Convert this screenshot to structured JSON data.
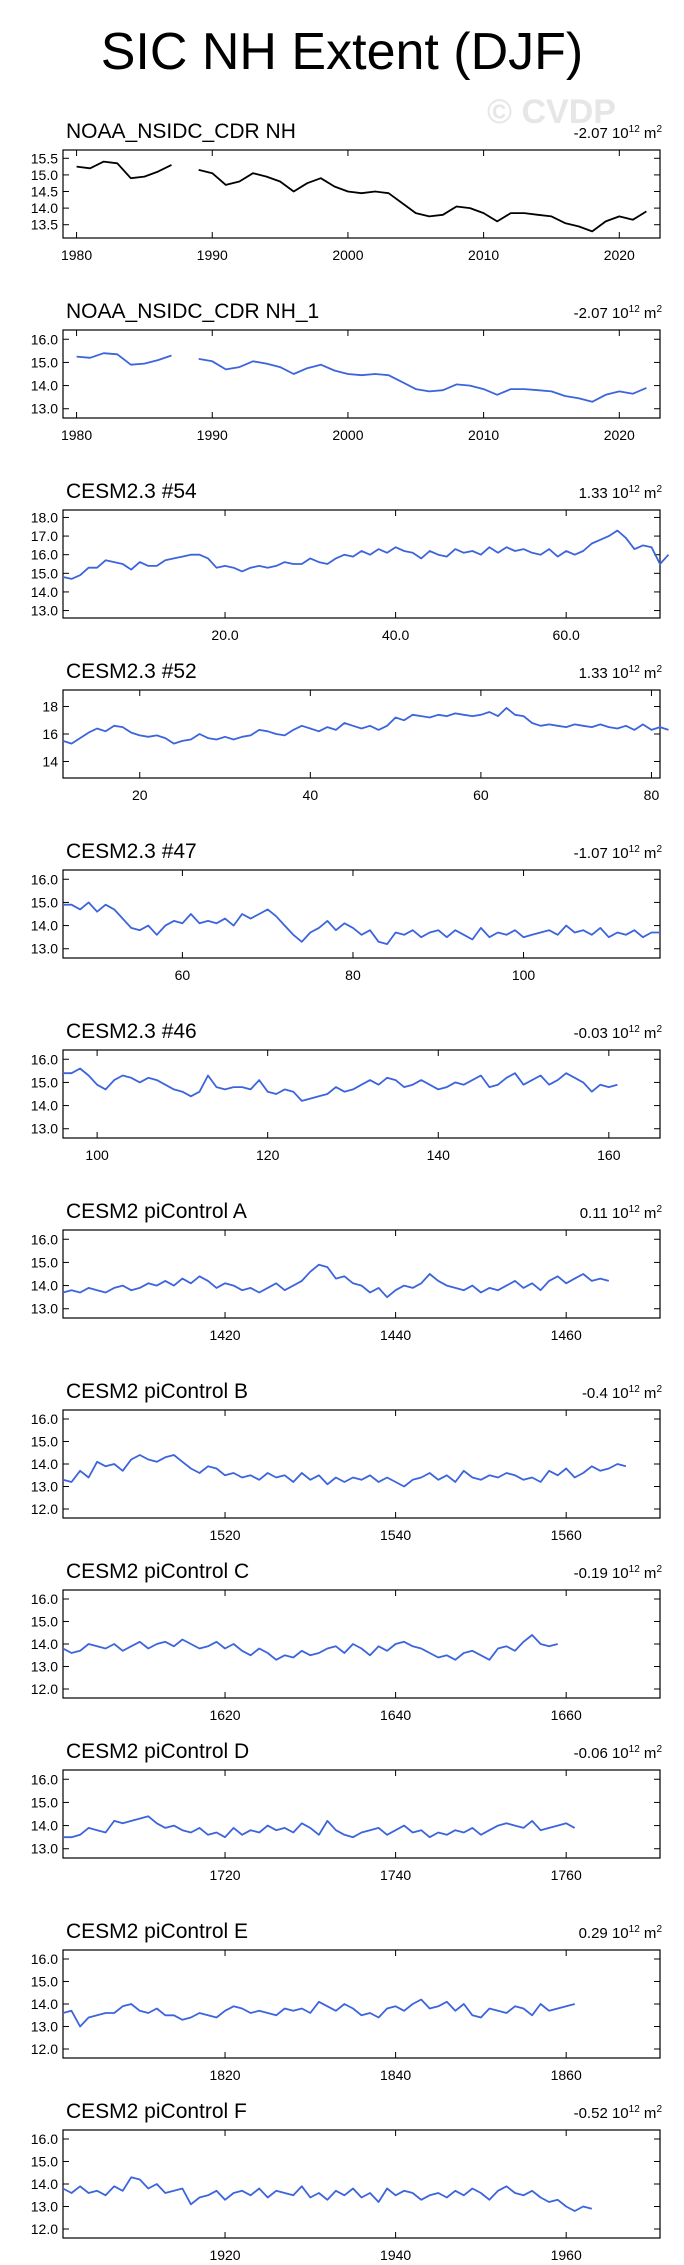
{
  "title": "SIC NH Extent (DJF)",
  "watermark": "© CVDP",
  "units": "10",
  "unit_exp": "12",
  "unit_tail": "m",
  "unit_tail_exp": "2",
  "colors": {
    "obs": "#000000",
    "model": "#3c64dc",
    "frame": "#000000"
  },
  "chart_data": [
    {
      "type": "line",
      "name": "NOAA_NSIDC_CDR NH",
      "trend": "-2.07",
      "color": "#000000",
      "ylim": [
        13.1,
        15.75
      ],
      "yticks": [
        "13.5",
        "14.0",
        "14.5",
        "15.0",
        "15.5"
      ],
      "xlim": [
        1979,
        2023
      ],
      "xticks": [
        "1980",
        "1990",
        "2000",
        "2010",
        "2020"
      ],
      "x": [
        1980,
        1981,
        1982,
        1983,
        1984,
        1985,
        1986,
        1987,
        1988,
        1989,
        1990,
        1991,
        1992,
        1993,
        1994,
        1995,
        1996,
        1997,
        1998,
        1999,
        2000,
        2001,
        2002,
        2003,
        2004,
        2005,
        2006,
        2007,
        2008,
        2009,
        2010,
        2011,
        2012,
        2013,
        2014,
        2015,
        2016,
        2017,
        2018,
        2019,
        2020,
        2021,
        2022,
        2023
      ],
      "y": [
        15.25,
        15.2,
        15.4,
        15.35,
        14.9,
        14.95,
        15.1,
        15.3,
        null,
        15.15,
        15.05,
        14.7,
        14.8,
        15.05,
        14.95,
        14.8,
        14.5,
        14.75,
        14.9,
        14.65,
        14.5,
        14.45,
        14.5,
        14.45,
        14.15,
        13.85,
        13.75,
        13.8,
        14.05,
        14.0,
        13.85,
        13.6,
        13.85,
        13.85,
        13.8,
        13.75,
        13.55,
        13.45,
        13.3,
        13.6,
        13.75,
        13.65,
        13.9,
        null
      ]
    },
    {
      "type": "line",
      "name": "NOAA_NSIDC_CDR NH_1",
      "trend": "-2.07",
      "color": "#3c64dc",
      "ylim": [
        12.6,
        16.4
      ],
      "yticks": [
        "13.0",
        "14.0",
        "15.0",
        "16.0"
      ],
      "xlim": [
        1979,
        2023
      ],
      "xticks": [
        "1980",
        "1990",
        "2000",
        "2010",
        "2020"
      ],
      "x": [
        1980,
        1981,
        1982,
        1983,
        1984,
        1985,
        1986,
        1987,
        1988,
        1989,
        1990,
        1991,
        1992,
        1993,
        1994,
        1995,
        1996,
        1997,
        1998,
        1999,
        2000,
        2001,
        2002,
        2003,
        2004,
        2005,
        2006,
        2007,
        2008,
        2009,
        2010,
        2011,
        2012,
        2013,
        2014,
        2015,
        2016,
        2017,
        2018,
        2019,
        2020,
        2021,
        2022,
        2023
      ],
      "y": [
        15.25,
        15.2,
        15.4,
        15.35,
        14.9,
        14.95,
        15.1,
        15.3,
        null,
        15.15,
        15.05,
        14.7,
        14.8,
        15.05,
        14.95,
        14.8,
        14.5,
        14.75,
        14.9,
        14.65,
        14.5,
        14.45,
        14.5,
        14.45,
        14.15,
        13.85,
        13.75,
        13.8,
        14.05,
        14.0,
        13.85,
        13.6,
        13.85,
        13.85,
        13.8,
        13.75,
        13.55,
        13.45,
        13.3,
        13.6,
        13.75,
        13.65,
        13.9,
        null
      ]
    },
    {
      "type": "line",
      "name": "CESM2.3 #54",
      "trend": "1.33",
      "color": "#3c64dc",
      "ylim": [
        12.6,
        18.4
      ],
      "yticks": [
        "13.0",
        "14.0",
        "15.0",
        "16.0",
        "17.0",
        "18.0"
      ],
      "xlim": [
        1,
        71
      ],
      "xticks": [
        "20.0",
        "40.0",
        "60.0"
      ],
      "xtick_values": [
        20,
        40,
        60
      ],
      "x0": 1,
      "y": [
        14.8,
        14.7,
        14.9,
        15.3,
        15.3,
        15.7,
        15.6,
        15.5,
        15.2,
        15.6,
        15.4,
        15.4,
        15.7,
        15.8,
        15.9,
        16.0,
        16.0,
        15.8,
        15.3,
        15.4,
        15.3,
        15.1,
        15.3,
        15.4,
        15.3,
        15.4,
        15.6,
        15.5,
        15.5,
        15.8,
        15.6,
        15.5,
        15.8,
        16.0,
        15.9,
        16.2,
        16.0,
        16.3,
        16.1,
        16.4,
        16.2,
        16.1,
        15.8,
        16.2,
        16.0,
        15.9,
        16.3,
        16.1,
        16.2,
        16.0,
        16.4,
        16.1,
        16.4,
        16.2,
        16.3,
        16.1,
        16.0,
        16.3,
        15.9,
        16.2,
        16.0,
        16.2,
        16.6,
        16.8,
        17.0,
        17.3,
        16.9,
        16.3,
        16.5,
        16.4,
        15.5,
        16.0
      ]
    },
    {
      "type": "line",
      "name": "CESM2.3 #52",
      "trend": "1.33",
      "color": "#3c64dc",
      "ylim": [
        12.8,
        19.2
      ],
      "yticks": [
        "14",
        "16",
        "18"
      ],
      "xlim": [
        11,
        81
      ],
      "xticks": [
        "20",
        "40",
        "60",
        "80"
      ],
      "xtick_values": [
        20,
        40,
        60,
        80
      ],
      "x0": 11,
      "y": [
        15.5,
        15.3,
        15.7,
        16.1,
        16.4,
        16.2,
        16.6,
        16.5,
        16.1,
        15.9,
        15.8,
        15.9,
        15.7,
        15.3,
        15.5,
        15.6,
        16.0,
        15.7,
        15.6,
        15.8,
        15.6,
        15.8,
        15.9,
        16.3,
        16.2,
        16.0,
        15.9,
        16.3,
        16.6,
        16.4,
        16.2,
        16.5,
        16.3,
        16.8,
        16.6,
        16.4,
        16.6,
        16.3,
        16.6,
        17.2,
        17.0,
        17.4,
        17.3,
        17.2,
        17.4,
        17.3,
        17.5,
        17.4,
        17.3,
        17.4,
        17.6,
        17.3,
        17.9,
        17.4,
        17.3,
        16.8,
        16.6,
        16.7,
        16.6,
        16.5,
        16.7,
        16.6,
        16.5,
        16.7,
        16.5,
        16.4,
        16.6,
        16.3,
        16.7,
        16.3,
        16.5,
        16.3
      ]
    },
    {
      "type": "line",
      "name": "CESM2.3 #47",
      "trend": "-1.07",
      "color": "#3c64dc",
      "ylim": [
        12.6,
        16.4
      ],
      "yticks": [
        "13.0",
        "14.0",
        "15.0",
        "16.0"
      ],
      "xlim": [
        46,
        116
      ],
      "xticks": [
        "60",
        "80",
        "100"
      ],
      "xtick_values": [
        60,
        80,
        100
      ],
      "x0": 46,
      "y": [
        14.9,
        14.9,
        14.7,
        15.0,
        14.6,
        14.9,
        14.7,
        14.3,
        13.9,
        13.8,
        14.0,
        13.6,
        14.0,
        14.2,
        14.1,
        14.5,
        14.1,
        14.2,
        14.1,
        14.3,
        14.0,
        14.5,
        14.3,
        14.5,
        14.7,
        14.4,
        14.0,
        13.6,
        13.3,
        13.7,
        13.9,
        14.2,
        13.8,
        14.1,
        13.9,
        13.6,
        13.8,
        13.3,
        13.2,
        13.7,
        13.6,
        13.8,
        13.5,
        13.7,
        13.8,
        13.5,
        13.8,
        13.6,
        13.4,
        13.9,
        13.5,
        13.7,
        13.6,
        13.8,
        13.5,
        13.6,
        13.7,
        13.8,
        13.6,
        14.0,
        13.7,
        13.8,
        13.6,
        13.9,
        13.5,
        13.7,
        13.6,
        13.8,
        13.5,
        13.7,
        13.7
      ]
    },
    {
      "type": "line",
      "name": "CESM2.3 #46",
      "trend": "-0.03",
      "color": "#3c64dc",
      "ylim": [
        12.6,
        16.4
      ],
      "yticks": [
        "13.0",
        "14.0",
        "15.0",
        "16.0"
      ],
      "xlim": [
        96,
        166
      ],
      "xticks": [
        "100",
        "120",
        "140",
        "160"
      ],
      "xtick_values": [
        100,
        120,
        140,
        160
      ],
      "x0": 96,
      "y": [
        15.4,
        15.4,
        15.6,
        15.3,
        14.9,
        14.7,
        15.1,
        15.3,
        15.2,
        15.0,
        15.2,
        15.1,
        14.9,
        14.7,
        14.6,
        14.4,
        14.6,
        15.3,
        14.8,
        14.7,
        14.8,
        14.8,
        14.7,
        15.1,
        14.6,
        14.5,
        14.7,
        14.6,
        14.2,
        14.3,
        14.4,
        14.5,
        14.8,
        14.6,
        14.7,
        14.9,
        15.1,
        14.9,
        15.2,
        15.1,
        14.8,
        14.9,
        15.1,
        14.9,
        14.7,
        14.8,
        15.0,
        14.9,
        15.1,
        15.3,
        14.8,
        14.9,
        15.2,
        15.4,
        14.9,
        15.1,
        15.3,
        14.9,
        15.1,
        15.4,
        15.2,
        15.0,
        14.6,
        14.9,
        14.8,
        14.9
      ]
    },
    {
      "type": "line",
      "name": "CESM2 piControl A",
      "trend": "0.11",
      "color": "#3c64dc",
      "ylim": [
        12.6,
        16.4
      ],
      "yticks": [
        "13.0",
        "14.0",
        "15.0",
        "16.0"
      ],
      "xlim": [
        1401,
        1471
      ],
      "xticks": [
        "1420",
        "1440",
        "1460"
      ],
      "xtick_values": [
        1420,
        1440,
        1460
      ],
      "x0": 1401,
      "y": [
        13.7,
        13.8,
        13.7,
        13.9,
        13.8,
        13.7,
        13.9,
        14.0,
        13.8,
        13.9,
        14.1,
        14.0,
        14.2,
        14.0,
        14.3,
        14.1,
        14.4,
        14.2,
        13.9,
        14.1,
        14.0,
        13.8,
        13.9,
        13.7,
        13.9,
        14.1,
        13.8,
        14.0,
        14.2,
        14.6,
        14.9,
        14.8,
        14.3,
        14.4,
        14.1,
        14.0,
        13.7,
        13.9,
        13.5,
        13.8,
        14.0,
        13.9,
        14.1,
        14.5,
        14.2,
        14.0,
        13.9,
        13.8,
        14.0,
        13.7,
        13.9,
        13.8,
        14.0,
        14.2,
        13.9,
        14.1,
        13.8,
        14.2,
        14.4,
        14.1,
        14.3,
        14.5,
        14.2,
        14.3,
        14.2
      ]
    },
    {
      "type": "line",
      "name": "CESM2 piControl B",
      "trend": "-0.4",
      "color": "#3c64dc",
      "ylim": [
        11.6,
        16.4
      ],
      "yticks": [
        "12.0",
        "13.0",
        "14.0",
        "15.0",
        "16.0"
      ],
      "xlim": [
        1501,
        1571
      ],
      "xticks": [
        "1520",
        "1540",
        "1560"
      ],
      "xtick_values": [
        1520,
        1540,
        1560
      ],
      "x0": 1501,
      "y": [
        13.3,
        13.2,
        13.7,
        13.4,
        14.1,
        13.9,
        14.0,
        13.7,
        14.2,
        14.4,
        14.2,
        14.1,
        14.3,
        14.4,
        14.1,
        13.8,
        13.6,
        13.9,
        13.8,
        13.5,
        13.6,
        13.4,
        13.5,
        13.3,
        13.6,
        13.4,
        13.5,
        13.2,
        13.6,
        13.3,
        13.5,
        13.1,
        13.4,
        13.2,
        13.4,
        13.3,
        13.5,
        13.2,
        13.4,
        13.2,
        13.0,
        13.3,
        13.4,
        13.6,
        13.3,
        13.5,
        13.2,
        13.7,
        13.4,
        13.3,
        13.5,
        13.4,
        13.6,
        13.5,
        13.3,
        13.4,
        13.2,
        13.7,
        13.5,
        13.8,
        13.4,
        13.6,
        13.9,
        13.7,
        13.8,
        14.0,
        13.9
      ]
    },
    {
      "type": "line",
      "name": "CESM2 piControl C",
      "trend": "-0.19",
      "color": "#3c64dc",
      "ylim": [
        11.6,
        16.4
      ],
      "yticks": [
        "12.0",
        "13.0",
        "14.0",
        "15.0",
        "16.0"
      ],
      "xlim": [
        1601,
        1671
      ],
      "xticks": [
        "1620",
        "1640",
        "1660"
      ],
      "xtick_values": [
        1620,
        1640,
        1660
      ],
      "x0": 1601,
      "y": [
        13.8,
        13.6,
        13.7,
        14.0,
        13.9,
        13.8,
        14.0,
        13.7,
        13.9,
        14.1,
        13.8,
        14.0,
        14.1,
        13.9,
        14.2,
        14.0,
        13.8,
        13.9,
        14.1,
        13.8,
        14.0,
        13.7,
        13.5,
        13.8,
        13.6,
        13.3,
        13.5,
        13.4,
        13.7,
        13.5,
        13.6,
        13.8,
        13.9,
        13.6,
        14.0,
        13.8,
        13.5,
        13.9,
        13.7,
        14.0,
        14.1,
        13.9,
        13.8,
        13.6,
        13.4,
        13.5,
        13.3,
        13.6,
        13.7,
        13.5,
        13.3,
        13.8,
        13.9,
        13.7,
        14.1,
        14.4,
        14.0,
        13.9,
        14.0
      ]
    },
    {
      "type": "line",
      "name": "CESM2 piControl D",
      "trend": "-0.06",
      "color": "#3c64dc",
      "ylim": [
        12.6,
        16.4
      ],
      "yticks": [
        "13.0",
        "14.0",
        "15.0",
        "16.0"
      ],
      "xlim": [
        1701,
        1771
      ],
      "xticks": [
        "1720",
        "1740",
        "1760"
      ],
      "xtick_values": [
        1720,
        1740,
        1760
      ],
      "x0": 1701,
      "y": [
        13.5,
        13.5,
        13.6,
        13.9,
        13.8,
        13.7,
        14.2,
        14.1,
        14.2,
        14.3,
        14.4,
        14.1,
        13.9,
        14.0,
        13.8,
        13.7,
        13.9,
        13.6,
        13.7,
        13.5,
        13.9,
        13.6,
        13.8,
        13.7,
        14.0,
        13.8,
        13.9,
        13.7,
        14.1,
        13.9,
        13.6,
        14.2,
        13.8,
        13.6,
        13.5,
        13.7,
        13.8,
        13.9,
        13.6,
        13.8,
        14.0,
        13.7,
        13.8,
        13.5,
        13.7,
        13.6,
        13.8,
        13.7,
        13.9,
        13.6,
        13.8,
        14.0,
        14.1,
        14.0,
        13.9,
        14.2,
        13.8,
        13.9,
        14.0,
        14.1,
        13.9
      ]
    },
    {
      "type": "line",
      "name": "CESM2 piControl E",
      "trend": "0.29",
      "color": "#3c64dc",
      "ylim": [
        11.6,
        16.4
      ],
      "yticks": [
        "12.0",
        "13.0",
        "14.0",
        "15.0",
        "16.0"
      ],
      "xlim": [
        1801,
        1871
      ],
      "xticks": [
        "1820",
        "1840",
        "1860"
      ],
      "xtick_values": [
        1820,
        1840,
        1860
      ],
      "x0": 1801,
      "y": [
        13.6,
        13.7,
        13.0,
        13.4,
        13.5,
        13.6,
        13.6,
        13.9,
        14.0,
        13.7,
        13.6,
        13.8,
        13.5,
        13.5,
        13.3,
        13.4,
        13.6,
        13.5,
        13.4,
        13.7,
        13.9,
        13.8,
        13.6,
        13.7,
        13.6,
        13.5,
        13.8,
        13.7,
        13.8,
        13.6,
        14.1,
        13.9,
        13.7,
        14.0,
        13.8,
        13.5,
        13.6,
        13.4,
        13.8,
        13.9,
        13.7,
        14.0,
        14.2,
        13.8,
        13.9,
        14.1,
        13.7,
        14.0,
        13.5,
        13.4,
        13.8,
        13.7,
        13.6,
        13.9,
        13.8,
        13.5,
        14.0,
        13.7,
        13.8,
        13.9,
        14.0
      ]
    },
    {
      "type": "line",
      "name": "CESM2 piControl F",
      "trend": "-0.52",
      "color": "#3c64dc",
      "ylim": [
        11.6,
        16.4
      ],
      "yticks": [
        "12.0",
        "13.0",
        "14.0",
        "15.0",
        "16.0"
      ],
      "xlim": [
        1901,
        1971
      ],
      "xticks": [
        "1920",
        "1940",
        "1960"
      ],
      "xtick_values": [
        1920,
        1940,
        1960
      ],
      "x0": 1901,
      "y": [
        13.8,
        13.6,
        13.9,
        13.6,
        13.7,
        13.5,
        13.9,
        13.7,
        14.3,
        14.2,
        13.8,
        14.0,
        13.6,
        13.7,
        13.8,
        13.1,
        13.4,
        13.5,
        13.7,
        13.3,
        13.6,
        13.7,
        13.5,
        13.8,
        13.4,
        13.7,
        13.6,
        13.5,
        13.9,
        13.4,
        13.6,
        13.3,
        13.7,
        13.5,
        13.8,
        13.4,
        13.6,
        13.2,
        13.8,
        13.5,
        13.7,
        13.6,
        13.3,
        13.5,
        13.6,
        13.4,
        13.7,
        13.5,
        13.8,
        13.6,
        13.3,
        13.7,
        13.9,
        13.6,
        13.5,
        13.7,
        13.4,
        13.2,
        13.3,
        13.0,
        12.8,
        13.0,
        12.9
      ]
    }
  ]
}
